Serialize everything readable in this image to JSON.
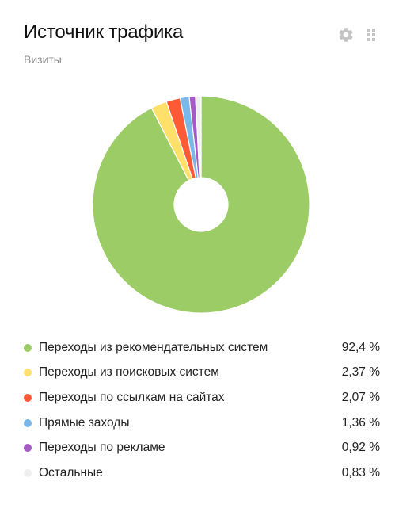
{
  "header": {
    "title": "Источник трафика",
    "subtitle": "Визиты"
  },
  "toolbar": {
    "settings_icon": "gear-icon",
    "drag_icon": "drag-handle-icon"
  },
  "chart_data": {
    "type": "pie",
    "title": "Источник трафика",
    "subtitle": "Визиты",
    "donut": true,
    "start_angle_deg": 0,
    "slices": [
      {
        "label": "Переходы из рекомендательных систем",
        "value": 92.4,
        "display": "92,4 %",
        "color": "#9ccc65"
      },
      {
        "label": "Переходы из поисковых систем",
        "value": 2.37,
        "display": "2,37 %",
        "color": "#ffe06a"
      },
      {
        "label": "Переходы по ссылкам на сайтах",
        "value": 2.07,
        "display": "2,07 %",
        "color": "#ff5a36"
      },
      {
        "label": "Прямые заходы",
        "value": 1.36,
        "display": "1,36 %",
        "color": "#7ab8ea"
      },
      {
        "label": "Переходы по рекламе",
        "value": 0.92,
        "display": "0,92 %",
        "color": "#a45cc4"
      },
      {
        "label": "Остальные",
        "value": 0.83,
        "display": "0,83 %",
        "color": "#efefef"
      }
    ]
  }
}
